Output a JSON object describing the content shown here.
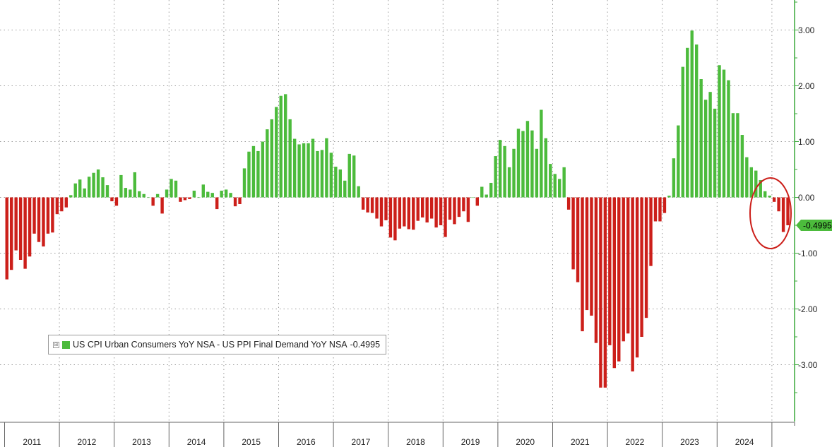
{
  "chart_data": {
    "type": "bar",
    "series_name": "US CPI Urban Consumers YoY NSA - US PPI Final Demand YoY NSA",
    "last_value_label": "-0.4995",
    "positive_color": "#4cbb3c",
    "negative_color": "#cc1f1a",
    "axis_color": "#3aa83a",
    "ylim": [
      -4.0,
      3.5
    ],
    "y_ticks": [
      3.0,
      2.0,
      1.0,
      0.0,
      -1.0,
      -2.0,
      -3.0
    ],
    "y_tick_labels": [
      "3.00",
      "2.00",
      "1.00",
      "0.00",
      "-1.00",
      "-2.00",
      "-3.00"
    ],
    "year_labels": [
      "2011",
      "2012",
      "2013",
      "2014",
      "2015",
      "2016",
      "2017",
      "2018",
      "2019",
      "2020",
      "2021",
      "2022",
      "2023",
      "2024"
    ],
    "start": "2011-01",
    "frequency": "monthly",
    "values": [
      -1.47,
      -1.3,
      -0.95,
      -1.12,
      -1.28,
      -1.06,
      -0.65,
      -0.8,
      -0.88,
      -0.65,
      -0.63,
      -0.3,
      -0.25,
      -0.18,
      0.04,
      0.25,
      0.32,
      0.16,
      0.37,
      0.44,
      0.5,
      0.36,
      0.22,
      -0.07,
      -0.15,
      0.4,
      0.17,
      0.14,
      0.45,
      0.11,
      0.06,
      0.0,
      -0.15,
      0.06,
      -0.29,
      0.14,
      0.33,
      0.3,
      -0.08,
      -0.05,
      -0.03,
      0.12,
      0.0,
      0.23,
      0.1,
      0.08,
      -0.21,
      0.12,
      0.14,
      0.08,
      -0.16,
      -0.12,
      0.52,
      0.82,
      0.92,
      0.83,
      1.0,
      1.22,
      1.4,
      1.62,
      1.82,
      1.85,
      1.4,
      1.05,
      0.95,
      0.97,
      0.97,
      1.05,
      0.83,
      0.85,
      1.06,
      0.8,
      0.55,
      0.5,
      0.3,
      0.78,
      0.75,
      0.2,
      -0.22,
      -0.27,
      -0.28,
      -0.38,
      -0.52,
      -0.41,
      -0.72,
      -0.77,
      -0.56,
      -0.52,
      -0.57,
      -0.58,
      -0.42,
      -0.36,
      -0.45,
      -0.38,
      -0.54,
      -0.5,
      -0.71,
      -0.4,
      -0.48,
      -0.35,
      -0.25,
      -0.44,
      0.0,
      -0.15,
      0.19,
      0.05,
      0.26,
      0.74,
      1.03,
      0.92,
      0.54,
      0.87,
      1.23,
      1.19,
      1.37,
      1.2,
      0.87,
      1.57,
      1.06,
      0.6,
      0.42,
      0.33,
      0.54,
      -0.22,
      -1.29,
      -1.52,
      -2.4,
      -2.02,
      -2.12,
      -2.61,
      -3.41,
      -3.41,
      -2.65,
      -3.06,
      -2.94,
      -2.58,
      -2.44,
      -3.12,
      -2.87,
      -2.5,
      -2.16,
      -1.23,
      -0.43,
      -0.43,
      -0.28,
      0.03,
      0.7,
      1.29,
      2.34,
      2.68,
      2.99,
      2.74,
      2.12,
      1.75,
      1.89,
      1.59,
      2.37,
      2.29,
      2.1,
      1.51,
      1.51,
      1.12,
      0.72,
      0.54,
      0.48,
      0.31,
      0.11,
      0.03,
      -0.08,
      -0.25,
      -0.62,
      -0.5
    ]
  }
}
